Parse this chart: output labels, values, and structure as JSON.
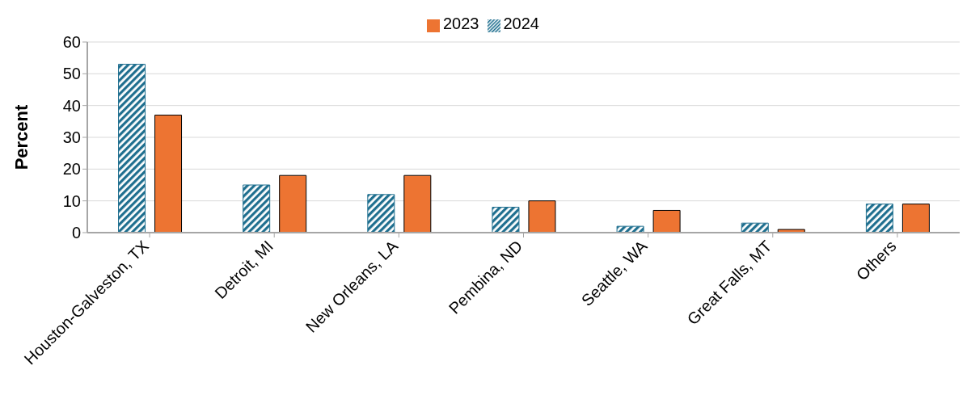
{
  "chart_data": {
    "type": "bar",
    "ylabel": "Percent",
    "categories": [
      "Houston-Galveston, TX",
      "Detroit, MI",
      "New Orleans, LA",
      "Pembina, ND",
      "Seattle, WA",
      "Great Falls, MT",
      "Others"
    ],
    "series": [
      {
        "name": "2024",
        "color": "#1f6f8f",
        "values": [
          53,
          15,
          12,
          8,
          2,
          3,
          9
        ]
      },
      {
        "name": "2023",
        "color": "#ed7432",
        "values": [
          37,
          18,
          18,
          10,
          7,
          1,
          9
        ]
      }
    ],
    "ylim": [
      0,
      60
    ],
    "yticks": [
      0,
      10,
      20,
      30,
      40,
      50,
      60
    ],
    "grid": "y",
    "legend": "top"
  }
}
